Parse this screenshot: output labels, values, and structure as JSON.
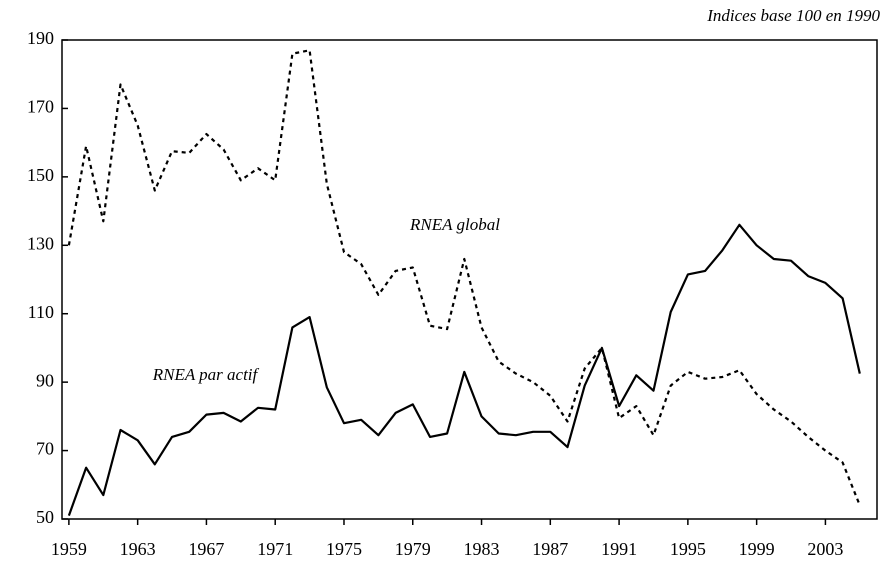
{
  "chart_data": {
    "type": "line",
    "annotations": [
      "Indices base 100 en 1990"
    ],
    "x": [
      1959,
      1960,
      1961,
      1962,
      1963,
      1964,
      1965,
      1966,
      1967,
      1968,
      1969,
      1970,
      1971,
      1972,
      1973,
      1974,
      1975,
      1976,
      1977,
      1978,
      1979,
      1980,
      1981,
      1982,
      1983,
      1984,
      1985,
      1986,
      1987,
      1988,
      1989,
      1990,
      1991,
      1992,
      1993,
      1994,
      1995,
      1996,
      1997,
      1998,
      1999,
      2000,
      2001,
      2002,
      2003,
      2004,
      2005
    ],
    "series": [
      {
        "name": "RNEA par actif",
        "color": "#000000",
        "dash": "solid",
        "values": [
          51,
          65,
          57,
          76,
          73,
          66,
          74,
          75.5,
          80.5,
          81,
          78.5,
          82.5,
          82,
          106,
          109,
          88.5,
          78,
          79,
          74.5,
          81,
          83.5,
          74,
          75,
          93,
          80,
          75,
          74.5,
          75.5,
          75.5,
          71,
          89,
          100,
          83,
          92,
          87.5,
          110.5,
          121.5,
          122.5,
          128.5,
          136,
          130,
          126,
          125.5,
          121,
          119,
          114.5,
          92.5
        ]
      },
      {
        "name": "RNEA global",
        "color": "#000000",
        "dash": "dotted",
        "values": [
          130,
          159,
          137,
          177,
          165,
          146,
          157.5,
          157,
          162.5,
          158,
          149,
          152.5,
          149,
          186,
          187,
          148,
          128,
          124.5,
          115.5,
          122.5,
          123.5,
          106.5,
          105.5,
          126,
          106,
          96,
          92.5,
          90,
          86,
          78.5,
          94,
          100,
          79.5,
          83,
          74.5,
          89,
          93,
          91,
          91.5,
          93.5,
          86.5,
          82,
          78.5,
          74,
          70,
          66.5,
          54
        ]
      }
    ],
    "xlim": [
      1958.6,
      2006
    ],
    "xticks": [
      1959,
      1963,
      1967,
      1971,
      1975,
      1979,
      1983,
      1987,
      1991,
      1995,
      1999,
      2003
    ],
    "ylim": [
      50,
      190
    ],
    "yticks": [
      50,
      70,
      90,
      110,
      130,
      150,
      170,
      190
    ],
    "grid": false
  }
}
